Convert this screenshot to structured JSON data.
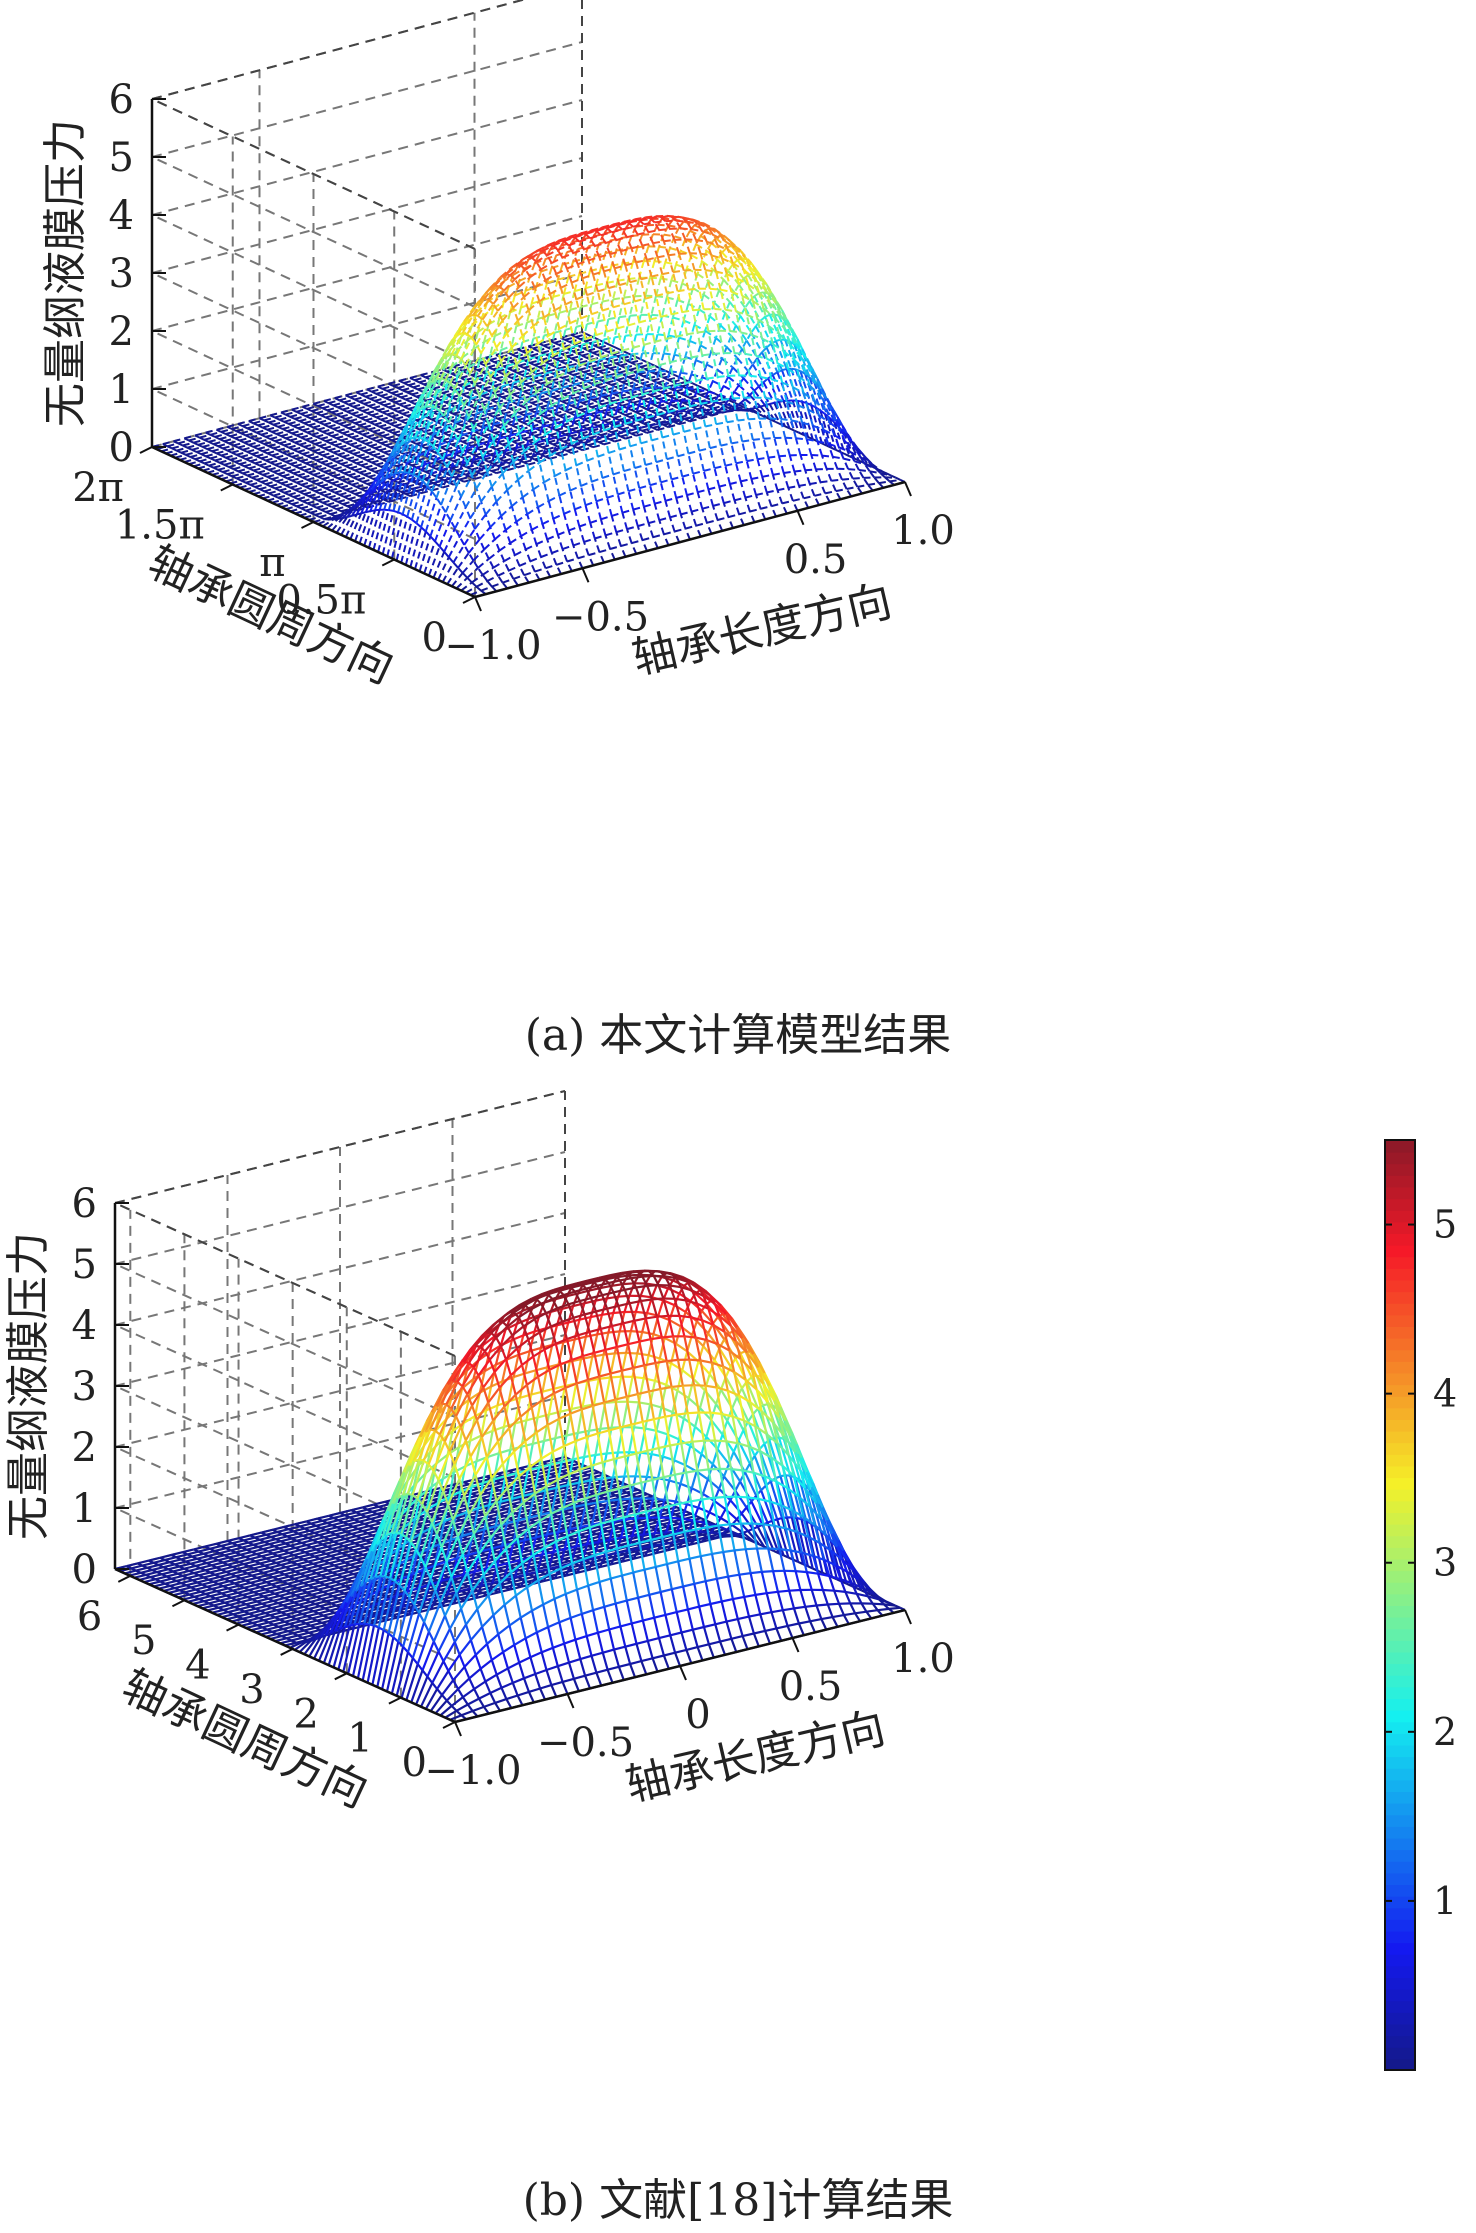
{
  "chart_data": [
    {
      "type": "surface",
      "caption": "(a) 本文计算模型结果",
      "zlabel": "无量纲液膜压力",
      "xlabel": "轴承长度方向",
      "ylabel": "轴承圆周方向",
      "xlim": [
        -1.0,
        1.0
      ],
      "ylim": [
        0,
        6.283
      ],
      "zlim": [
        0,
        6
      ],
      "x_ticks": [
        -1.0,
        -0.5,
        0.5,
        1.0
      ],
      "x_tick_labels": [
        "−1.0",
        "−0.5",
        "0.5",
        "1.0"
      ],
      "y_ticks": [
        0,
        1.5708,
        3.1416,
        4.7124,
        6.2832
      ],
      "y_tick_labels": [
        "0",
        "0.5π",
        "π",
        "1.5π",
        "2π"
      ],
      "z_ticks": [
        0,
        1,
        2,
        3,
        4,
        5,
        6
      ],
      "z_tick_labels": [
        "0",
        "1",
        "2",
        "3",
        "4",
        "5",
        "6"
      ],
      "peak_pressure": 4.4,
      "peak_circumferential_position": 1.75,
      "pressure_zone": [
        0,
        3.1416
      ],
      "grid": true,
      "colormap": "jet",
      "mesh_style": "dashed"
    },
    {
      "type": "surface",
      "caption": "(b) 文献[18]计算结果",
      "zlabel": "无量纲液膜压力",
      "xlabel": "轴承长度方向",
      "ylabel": "轴承圆周方向",
      "xlim": [
        -1.0,
        1.0
      ],
      "ylim": [
        0,
        6.283
      ],
      "zlim": [
        0,
        6
      ],
      "x_ticks": [
        -1.0,
        -0.5,
        0,
        0.5,
        1.0
      ],
      "x_tick_labels": [
        "−1.0",
        "−0.5",
        "0",
        "0.5",
        "1.0"
      ],
      "y_ticks": [
        0,
        1,
        2,
        3,
        4,
        5,
        6
      ],
      "y_tick_labels": [
        "0",
        "1",
        "2",
        "3",
        "4",
        "5",
        "6"
      ],
      "z_ticks": [
        0,
        1,
        2,
        3,
        4,
        5,
        6
      ],
      "z_tick_labels": [
        "0",
        "1",
        "2",
        "3",
        "4",
        "5",
        "6"
      ],
      "peak_pressure": 5.3,
      "peak_circumferential_position": 1.75,
      "pressure_zone": [
        0,
        3.1416
      ],
      "grid": true,
      "colormap": "jet",
      "mesh_style": "solid",
      "colorbar": {
        "range": [
          0,
          5.5
        ],
        "ticks": [
          1,
          2,
          3,
          4,
          5
        ],
        "tick_labels": [
          "1",
          "2",
          "3",
          "4",
          "5"
        ]
      }
    }
  ]
}
